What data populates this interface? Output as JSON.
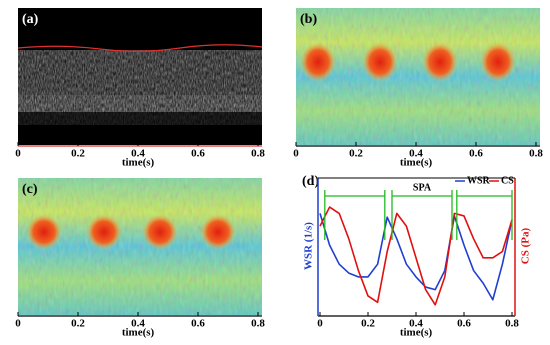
{
  "chart_data": [
    {
      "type": "image",
      "label": "(a)",
      "xlabel": "time(s)",
      "xlim": [
        0,
        0.8
      ],
      "xticks": [
        0,
        0.2,
        0.4,
        0.6,
        0.8
      ]
    },
    {
      "type": "image",
      "label": "(b)",
      "xlabel": "time(s)",
      "xlim": [
        0,
        0.8
      ],
      "xticks": [
        0,
        0.2,
        0.4,
        0.6,
        0.8
      ]
    },
    {
      "type": "image",
      "label": "(c)",
      "xlabel": "time(s)",
      "xlim": [
        0,
        0.8
      ],
      "xticks": [
        0,
        0.2,
        0.4,
        0.6,
        0.8
      ]
    },
    {
      "type": "line",
      "label": "(d)",
      "xlabel": "time(s)",
      "ylabel": "WSR (1/s)",
      "y2label": "CS (Pa)",
      "annotation": "SPA",
      "x": [
        0,
        0.04,
        0.08,
        0.12,
        0.16,
        0.2,
        0.24,
        0.28,
        0.32,
        0.36,
        0.4,
        0.44,
        0.48,
        0.52,
        0.56,
        0.6,
        0.64,
        0.68,
        0.72,
        0.76,
        0.8
      ],
      "xlim": [
        0,
        0.8
      ],
      "xticks": [
        0,
        0.2,
        0.4,
        0.6,
        0.8
      ],
      "ylim": [
        0,
        1
      ],
      "y2lim": [
        0,
        1
      ],
      "legend": "upper right",
      "series": [
        {
          "name": "WSR",
          "color": "#1f3fd0",
          "values": [
            0.8,
            0.55,
            0.4,
            0.33,
            0.3,
            0.3,
            0.4,
            0.77,
            0.6,
            0.4,
            0.3,
            0.22,
            0.2,
            0.35,
            0.78,
            0.55,
            0.35,
            0.25,
            0.12,
            0.4,
            0.75
          ]
        },
        {
          "name": "CS",
          "color": "#e01010",
          "axis": "y2",
          "values": [
            0.7,
            0.85,
            0.8,
            0.6,
            0.35,
            0.15,
            0.1,
            0.5,
            0.8,
            0.7,
            0.45,
            0.2,
            0.08,
            0.3,
            0.8,
            0.78,
            0.6,
            0.45,
            0.45,
            0.5,
            0.75
          ]
        }
      ]
    }
  ]
}
